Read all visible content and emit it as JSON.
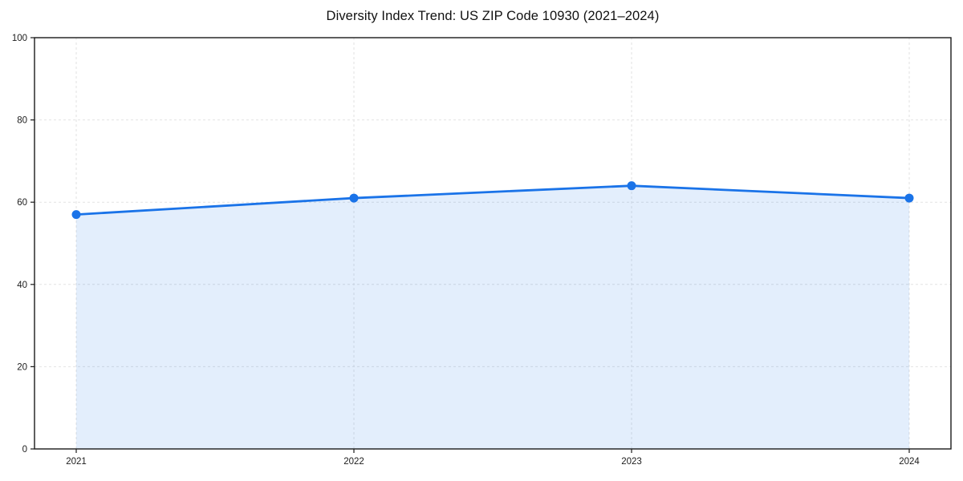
{
  "page": {
    "background_color": "#ffffff"
  },
  "chart_data": {
    "type": "area",
    "title": "Diversity Index Trend: US ZIP Code 10930 (2021–2024)",
    "x": [
      "2021",
      "2022",
      "2023",
      "2024"
    ],
    "series": [
      {
        "name": "Diversity Index",
        "values": [
          57,
          61,
          64,
          61
        ]
      }
    ],
    "xlabel": "",
    "ylabel": "",
    "ylim": [
      0,
      100
    ],
    "yticks": [
      0,
      20,
      40,
      60,
      80,
      100
    ],
    "grid": true,
    "grid_style": "dashed",
    "legend_position": "none",
    "markers": true,
    "frame": "full-box"
  },
  "style": {
    "line_color": "#1a73e8",
    "marker_color": "#1a73e8",
    "fill_color": "#1a73e8",
    "fill_opacity": 0.12,
    "grid_color": "#e2e2e2",
    "spine_color": "#1a1a1a",
    "tick_label_color": "#1c1c1c",
    "title_color": "#111111"
  }
}
